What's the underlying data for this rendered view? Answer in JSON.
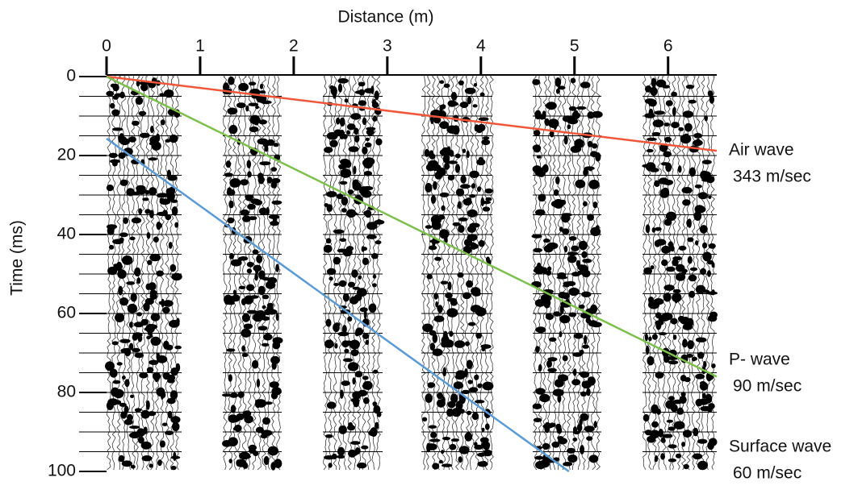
{
  "chart_data": {
    "type": "line",
    "x_label": "Distance (m)",
    "y_label": "Time (ms)",
    "xlim": [
      0,
      6.52
    ],
    "ylim": [
      0,
      100
    ],
    "y_inverted": true,
    "xticks": [
      0,
      1,
      2,
      3,
      4,
      5,
      6
    ],
    "yticks": [
      0,
      20,
      40,
      60,
      80,
      100
    ],
    "series": [
      {
        "name": "Air wave",
        "speed_label": "343 m/sec",
        "color": "#f0573a",
        "x": [
          0,
          6.52
        ],
        "values": [
          0,
          18.8
        ]
      },
      {
        "name": "P- wave",
        "speed_label": "90 m/sec",
        "color": "#7cc04b",
        "x": [
          0,
          6.52
        ],
        "values": [
          0,
          76
        ]
      },
      {
        "name": "Surface wave",
        "speed_label": "60 m/sec",
        "color": "#5b9bd5",
        "x": [
          0,
          4.94
        ],
        "values": [
          15.7,
          100
        ]
      }
    ]
  }
}
